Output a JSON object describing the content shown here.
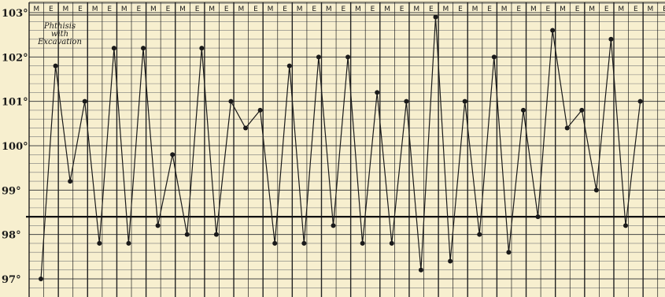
{
  "chart_data": {
    "type": "line",
    "annotation": [
      "Phthisis",
      "with",
      "Excavation"
    ],
    "x_labels": [
      "M",
      "E",
      "M",
      "E",
      "M",
      "E",
      "M",
      "E",
      "M",
      "E",
      "M",
      "E",
      "M",
      "E",
      "M",
      "E",
      "M",
      "E",
      "M",
      "E",
      "M",
      "E",
      "M",
      "E",
      "M",
      "E",
      "M",
      "E",
      "M",
      "E",
      "M",
      "E",
      "M",
      "E",
      "M",
      "E",
      "M",
      "E",
      "M",
      "E",
      "M",
      "E",
      "M",
      "E"
    ],
    "y_ticks": [
      {
        "value": 103,
        "label": "103°"
      },
      {
        "value": 102,
        "label": "102°"
      },
      {
        "value": 101,
        "label": "101°"
      },
      {
        "value": 100,
        "label": "100°"
      },
      {
        "value": 99,
        "label": "99°"
      },
      {
        "value": 98,
        "label": "98°"
      },
      {
        "value": 97,
        "label": "97°"
      }
    ],
    "ylim": [
      96.7,
      103.3
    ],
    "normal_line": 98.4,
    "series": [
      {
        "values": [
          97.0,
          101.8,
          99.2,
          101.0,
          97.8,
          102.2,
          97.8,
          102.2,
          98.2,
          99.8,
          98.0,
          102.2,
          98.0,
          101.0,
          100.4,
          100.8,
          97.8,
          101.8,
          97.8,
          102.0,
          98.2,
          102.0,
          97.8,
          101.2,
          97.8,
          101.0,
          97.2,
          102.9,
          97.4,
          101.0,
          98.0,
          102.0,
          97.6,
          100.8,
          98.4,
          102.6,
          100.4,
          100.8,
          99.0,
          102.4,
          98.2,
          101.0
        ]
      }
    ],
    "grid": true
  }
}
